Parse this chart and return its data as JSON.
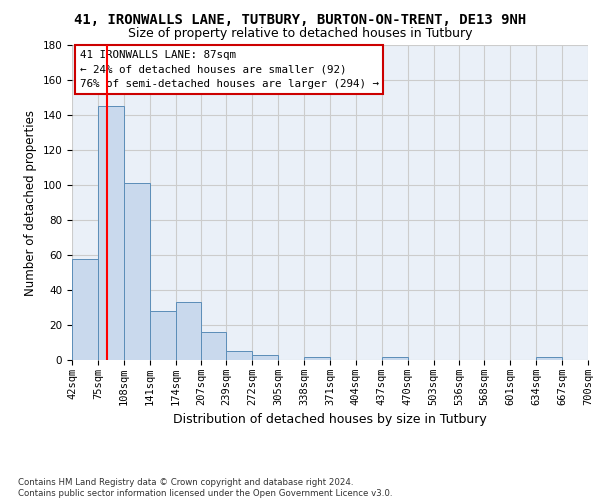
{
  "title_line1": "41, IRONWALLS LANE, TUTBURY, BURTON-ON-TRENT, DE13 9NH",
  "title_line2": "Size of property relative to detached houses in Tutbury",
  "xlabel": "Distribution of detached houses by size in Tutbury",
  "ylabel": "Number of detached properties",
  "bar_color": "#c9d9ed",
  "bar_edge_color": "#5b8db8",
  "red_line_x": 87,
  "annotation_text": "41 IRONWALLS LANE: 87sqm\n← 24% of detached houses are smaller (92)\n76% of semi-detached houses are larger (294) →",
  "annotation_box_color": "#ffffff",
  "annotation_box_edge_color": "#cc0000",
  "footer": "Contains HM Land Registry data © Crown copyright and database right 2024.\nContains public sector information licensed under the Open Government Licence v3.0.",
  "bin_edges": [
    42,
    75,
    108,
    141,
    174,
    207,
    239,
    272,
    305,
    338,
    371,
    404,
    437,
    470,
    503,
    536,
    568,
    601,
    634,
    667,
    700
  ],
  "bin_heights": [
    58,
    145,
    101,
    28,
    33,
    16,
    5,
    3,
    0,
    2,
    0,
    0,
    2,
    0,
    0,
    0,
    0,
    0,
    2,
    0
  ],
  "xlim": [
    42,
    700
  ],
  "ylim": [
    0,
    180
  ],
  "yticks": [
    0,
    20,
    40,
    60,
    80,
    100,
    120,
    140,
    160,
    180
  ],
  "grid_color": "#cccccc",
  "background_color": "#eaf0f8",
  "title_fontsize": 10,
  "subtitle_fontsize": 9,
  "tick_labelsize": 7.5,
  "ylabel_fontsize": 8.5,
  "xlabel_fontsize": 9
}
